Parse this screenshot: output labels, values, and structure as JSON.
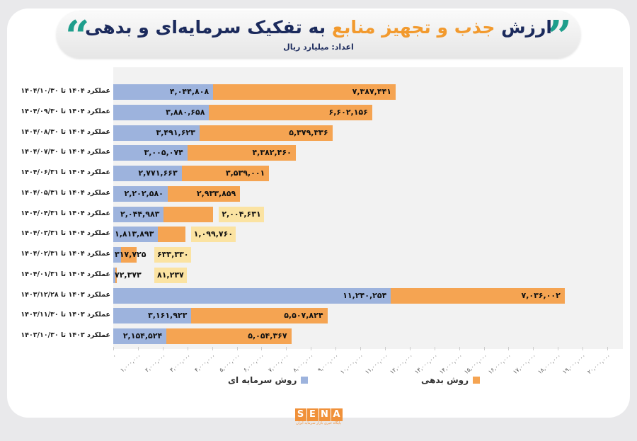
{
  "header": {
    "title_part1": "ارزش",
    "title_highlight": "جذب و تجهیز منابع",
    "title_part2": "به تفکیک سرمایه‌ای و بدهی",
    "subtitle": "اعداد: میلیارد ریال"
  },
  "logo": {
    "text": "SENA",
    "tagline": "پایگاه خبری بازار سرمایه ایران"
  },
  "colors": {
    "capital": "#9db3dd",
    "debt": "#f5a452",
    "label_box": "#fbe3a2"
  },
  "chart_data": {
    "type": "bar",
    "stacked": true,
    "orientation": "horizontal",
    "title": "ارزش جذب و تجهیز منابع به تفکیک سرمایه‌ای و بدهی",
    "unit": "میلیارد ریال",
    "categories": [
      "عملکرد ۱۴۰۴ تا ۱۴۰۴/۱۰/۳۰",
      "عملکرد ۱۴۰۴ تا ۱۴۰۴/۰۹/۳۰",
      "عملکرد ۱۴۰۴ تا ۱۴۰۴/۰۸/۳۰",
      "عملکرد ۱۴۰۴ تا ۱۴۰۴/۰۷/۳۰",
      "عملکرد ۱۴۰۴ تا ۱۴۰۴/۰۶/۳۱",
      "عملکرد ۱۴۰۴ تا ۱۴۰۴/۰۵/۳۱",
      "عملکرد ۱۴۰۴ تا ۱۴۰۴/۰۴/۳۱",
      "عملکرد ۱۴۰۴ تا ۱۴۰۴/۰۳/۳۱",
      "عملکرد ۱۴۰۴ تا ۱۴۰۴/۰۲/۳۱",
      "عملکرد ۱۴۰۴ تا ۱۴۰۴/۰۱/۳۱",
      "عملکرد ۱۴۰۳ تا ۱۴۰۳/۱۲/۲۸",
      "عملکرد ۱۴۰۳ تا ۱۴۰۳/۱۱/۳۰",
      "عملکرد ۱۴۰۳ تا ۱۴۰۳/۱۰/۳۰"
    ],
    "series": [
      {
        "name": "روش سرمایه ای",
        "values": [
          4044808,
          3880658,
          3491623,
          3005074,
          2771663,
          2202580,
          2044983,
          1813893,
          317725,
          72373,
          11240254,
          3161923,
          2154524
        ]
      },
      {
        "name": "روش بدهی",
        "values": [
          7387441,
          6602156,
          5379336,
          4382460,
          3539001,
          2933859,
          2004631,
          1099760,
          633330,
          81237,
          7036002,
          5507824,
          5054367
        ]
      }
    ],
    "xlim": [
      0,
      20000000
    ],
    "xtick_step": 1000000,
    "legend": "bottom",
    "grid": false
  }
}
